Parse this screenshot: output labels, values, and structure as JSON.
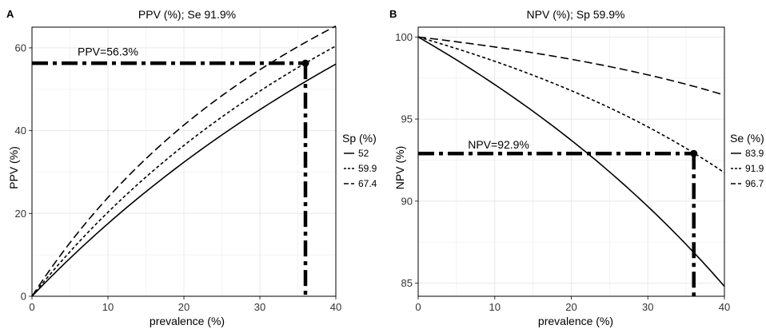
{
  "chart_data": [
    {
      "type": "line",
      "panel_letter": "A",
      "title": "PPV (%); Se 91.9%",
      "xlabel": "prevalence (%)",
      "ylabel": "PPV (%)",
      "xlim": [
        0,
        40
      ],
      "ylim": [
        0,
        65
      ],
      "x_ticks": [
        0,
        10,
        20,
        30,
        40
      ],
      "y_ticks": [
        0,
        20,
        40,
        60
      ],
      "grid": true,
      "legend_title": "Sp (%)",
      "legend_placement": "right",
      "sens": 0.919,
      "series": [
        {
          "name": "52",
          "spec": 0.52,
          "dash": "solid"
        },
        {
          "name": "59.9",
          "spec": 0.599,
          "dash": "dotted"
        },
        {
          "name": "67.4",
          "spec": 0.674,
          "dash": "dashed"
        }
      ],
      "reference_point": {
        "x": 36,
        "y": 56.3
      },
      "annotation": "PPV=56.3%",
      "annotation_pos": {
        "x": 6,
        "y": 58.2
      }
    },
    {
      "type": "line",
      "panel_letter": "B",
      "title": "NPV (%); Sp 59.9%",
      "xlabel": "prevalence (%)",
      "ylabel": "NPV (%)",
      "xlim": [
        0,
        40
      ],
      "ylim": [
        84.2,
        100.6
      ],
      "x_ticks": [
        0,
        10,
        20,
        30,
        40
      ],
      "y_ticks": [
        85,
        90,
        95,
        100
      ],
      "grid": true,
      "legend_title": "Se (%)",
      "legend_placement": "right",
      "spec": 0.599,
      "series": [
        {
          "name": "83.9",
          "sens": 0.839,
          "dash": "solid"
        },
        {
          "name": "91.9",
          "sens": 0.919,
          "dash": "dotted"
        },
        {
          "name": "96.7",
          "sens": 0.967,
          "dash": "dashed"
        }
      ],
      "reference_point": {
        "x": 36,
        "y": 92.9
      },
      "annotation": "NPV=92.9%",
      "annotation_pos": {
        "x": 6.5,
        "y": 93.2
      }
    }
  ]
}
